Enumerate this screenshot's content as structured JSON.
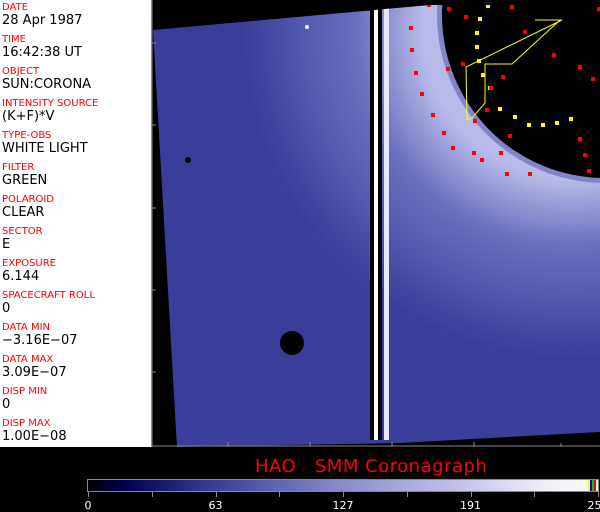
{
  "info_panel": {
    "fields": [
      {
        "label": "DATE",
        "value": "28 Apr 1987"
      },
      {
        "label": "TIME",
        "value": "16:42:38 UT"
      },
      {
        "label": "OBJECT",
        "value": "SUN:CORONA"
      },
      {
        "label": "INTENSITY SOURCE",
        "value": "(K+F)*V"
      },
      {
        "label": "TYPE-OBS",
        "value": "WHITE LIGHT"
      },
      {
        "label": "FILTER",
        "value": "GREEN"
      },
      {
        "label": "POLAROID",
        "value": "CLEAR"
      },
      {
        "label": "SECTOR",
        "value": "E"
      },
      {
        "label": "EXPOSURE",
        "value": "6.144"
      },
      {
        "label": "SPACECRAFT ROLL",
        "value": "0"
      },
      {
        "label": "DATA MIN",
        "value": "−3.16E−07"
      },
      {
        "label": "DATA MAX",
        "value": "3.09E−07"
      },
      {
        "label": "DISP MIN",
        "value": "0"
      },
      {
        "label": "DISP MAX",
        "value": "1.00E−08"
      }
    ]
  },
  "title": "HAO   SMM Coronagraph",
  "colorbar": {
    "ticks": [
      "0",
      "63",
      "127",
      "191",
      "255"
    ],
    "colors": {
      "low": "#000000",
      "mid": "#8a8cd0",
      "high": "#f8f8f8"
    }
  },
  "colors": {
    "label": "#ff0000",
    "value": "#000000",
    "image_blue": "#3c3f9c",
    "marker_red": "#ff0000",
    "marker_yellow": "#ffff00"
  }
}
